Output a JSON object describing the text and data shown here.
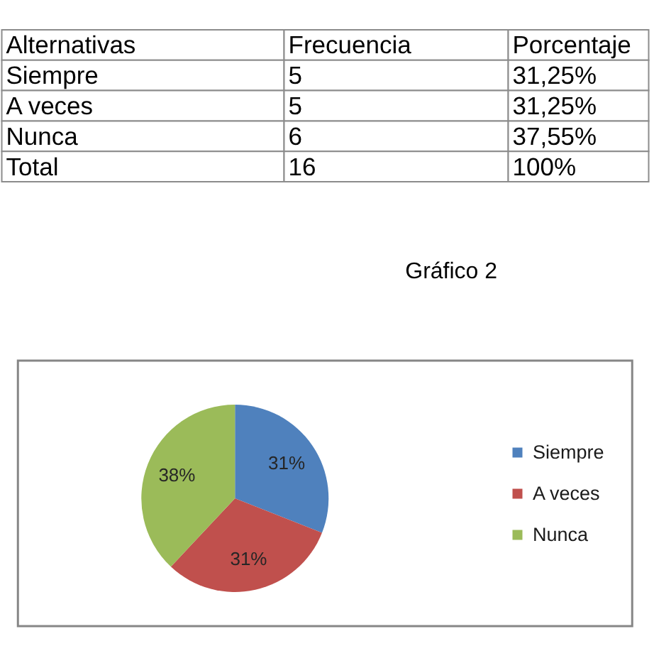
{
  "chart_data": [
    {
      "type": "other",
      "annotations": [
        "Alternativas",
        "Frecuencia",
        "Porcentaje",
        "Siempre",
        "5",
        "31,25%",
        "A veces",
        "5",
        "31,25%",
        "Nunca",
        "6",
        "37,55%",
        "Total",
        "16",
        "100%"
      ]
    },
    {
      "type": "pie",
      "title": "Gráfico 2",
      "categories": [
        "Siempre",
        "A veces",
        "Nunca"
      ],
      "values": [
        31,
        31,
        38
      ],
      "colors": [
        "#4f81bd",
        "#c0504d",
        "#9bbb59"
      ],
      "value_labels": [
        "31%",
        "31%",
        "38%"
      ],
      "legend": "right"
    }
  ]
}
